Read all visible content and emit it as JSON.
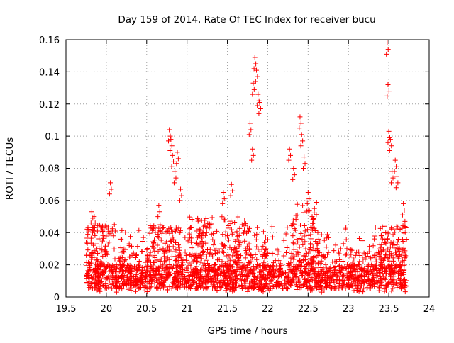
{
  "chart_data": {
    "type": "scatter",
    "title": "Day 159 of 2014, Rate Of TEC Index for receiver bucu",
    "xlabel": "GPS time / hours",
    "ylabel": "ROTI / TECUs",
    "xlim": [
      19.5,
      24
    ],
    "ylim": [
      0,
      0.16
    ],
    "grid": true,
    "marker": "+",
    "color": "#ff0000",
    "x_ticks": [
      "19.5",
      "20",
      "20.5",
      "21",
      "21.5",
      "22",
      "22.5",
      "23",
      "23.5",
      "24"
    ],
    "y_ticks": [
      "0",
      "0.02",
      "0.04",
      "0.06",
      "0.08",
      "0.1",
      "0.12",
      "0.14",
      "0.16"
    ],
    "series": [
      {
        "name": "ROTI",
        "x_range": [
          19.75,
          23.72
        ],
        "background_band": [
          0.003,
          0.03
        ],
        "spikes": [
          {
            "x": 19.82,
            "y": 0.053
          },
          {
            "x": 19.85,
            "y": 0.05
          },
          {
            "x": 20.05,
            "y": 0.071
          },
          {
            "x": 20.1,
            "y": 0.045
          },
          {
            "x": 20.65,
            "y": 0.057
          },
          {
            "x": 20.78,
            "y": 0.104
          },
          {
            "x": 20.8,
            "y": 0.098
          },
          {
            "x": 20.82,
            "y": 0.088
          },
          {
            "x": 20.85,
            "y": 0.078
          },
          {
            "x": 20.88,
            "y": 0.09
          },
          {
            "x": 20.92,
            "y": 0.067
          },
          {
            "x": 21.45,
            "y": 0.065
          },
          {
            "x": 21.55,
            "y": 0.07
          },
          {
            "x": 21.78,
            "y": 0.108
          },
          {
            "x": 21.81,
            "y": 0.092
          },
          {
            "x": 21.82,
            "y": 0.133
          },
          {
            "x": 21.84,
            "y": 0.149
          },
          {
            "x": 21.86,
            "y": 0.141
          },
          {
            "x": 21.88,
            "y": 0.126
          },
          {
            "x": 21.9,
            "y": 0.121
          },
          {
            "x": 22.27,
            "y": 0.092
          },
          {
            "x": 22.32,
            "y": 0.08
          },
          {
            "x": 22.4,
            "y": 0.112
          },
          {
            "x": 22.42,
            "y": 0.101
          },
          {
            "x": 22.45,
            "y": 0.087
          },
          {
            "x": 22.5,
            "y": 0.065
          },
          {
            "x": 22.55,
            "y": 0.05
          },
          {
            "x": 22.62,
            "y": 0.04
          },
          {
            "x": 23.48,
            "y": 0.158
          },
          {
            "x": 23.49,
            "y": 0.132
          },
          {
            "x": 23.5,
            "y": 0.103
          },
          {
            "x": 23.52,
            "y": 0.098
          },
          {
            "x": 23.54,
            "y": 0.078
          },
          {
            "x": 23.58,
            "y": 0.085
          },
          {
            "x": 23.6,
            "y": 0.075
          },
          {
            "x": 23.68,
            "y": 0.058
          },
          {
            "x": 23.7,
            "y": 0.047
          }
        ]
      }
    ]
  }
}
